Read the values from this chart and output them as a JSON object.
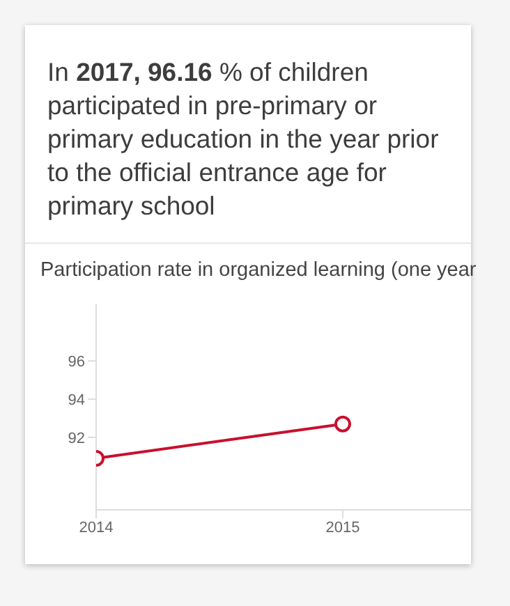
{
  "chart_data": {
    "type": "line",
    "title": "In 2017, 96.16 % of children participated in pre-primary or primary education in the year prior to the official entrance age for primary school",
    "subtitle": "Participation rate in organized learning (one year",
    "x": [
      2014,
      2015
    ],
    "series": [
      {
        "color": "#c8102e",
        "values": [
          90.9,
          92.7
        ]
      }
    ],
    "xlim": [
      2014,
      2015.52
    ],
    "xticks": [
      2014,
      2015
    ],
    "ylim": [
      88.2,
      99
    ],
    "yticks": [
      92,
      94,
      96
    ],
    "marker": "circle",
    "line_style": "solid"
  }
}
